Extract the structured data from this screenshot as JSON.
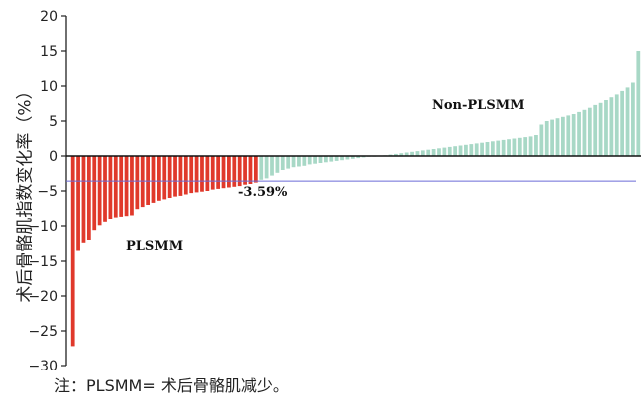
{
  "chart_data": {
    "type": "bar",
    "ylabel": "术后骨骼肌指数变化率（%）",
    "ylim": [
      -30,
      20
    ],
    "yticks": [
      -30,
      -25,
      -20,
      -15,
      -10,
      -5,
      0,
      5,
      10,
      15,
      20
    ],
    "grid": false,
    "reference_line": {
      "value": -3.59,
      "label": "-3.59%",
      "color": "#6b6bd6"
    },
    "groups": [
      {
        "name": "PLSMM",
        "color": "#e0392b"
      },
      {
        "name": "Non-PLSMM",
        "color": "#a8d8c6"
      }
    ],
    "series": [
      {
        "name": "PLSMM",
        "values": [
          -27.2,
          -13.5,
          -12.4,
          -12.0,
          -10.6,
          -9.9,
          -9.4,
          -9.0,
          -8.8,
          -8.7,
          -8.6,
          -8.5,
          -7.6,
          -7.3,
          -7.0,
          -6.7,
          -6.4,
          -6.2,
          -6.0,
          -5.8,
          -5.7,
          -5.5,
          -5.3,
          -5.2,
          -5.1,
          -5.0,
          -4.8,
          -4.7,
          -4.6,
          -4.5,
          -4.4,
          -4.3,
          -4.1,
          -4.0,
          -3.8
        ]
      },
      {
        "name": "Non-PLSMM",
        "values": [
          -3.4,
          -3.2,
          -2.8,
          -2.4,
          -2.0,
          -1.8,
          -1.6,
          -1.5,
          -1.4,
          -1.2,
          -1.1,
          -1.0,
          -0.9,
          -0.8,
          -0.7,
          -0.6,
          -0.5,
          -0.4,
          -0.3,
          -0.2,
          -0.1,
          -0.1,
          0.05,
          0.1,
          0.2,
          0.3,
          0.4,
          0.5,
          0.6,
          0.7,
          0.8,
          0.9,
          1.0,
          1.1,
          1.2,
          1.3,
          1.4,
          1.5,
          1.6,
          1.7,
          1.8,
          1.9,
          2.0,
          2.1,
          2.2,
          2.3,
          2.4,
          2.5,
          2.6,
          2.7,
          2.8,
          3.0,
          4.5,
          5.0,
          5.2,
          5.4,
          5.6,
          5.8,
          6.0,
          6.3,
          6.6,
          6.9,
          7.3,
          7.6,
          8.0,
          8.4,
          8.8,
          9.3,
          9.8,
          10.5,
          15.0
        ]
      }
    ],
    "annotations": [
      {
        "text": "PLSMM"
      },
      {
        "text": "Non-PLSMM"
      }
    ]
  },
  "note": "注：PLSMM= 术后骨骼肌减少。"
}
